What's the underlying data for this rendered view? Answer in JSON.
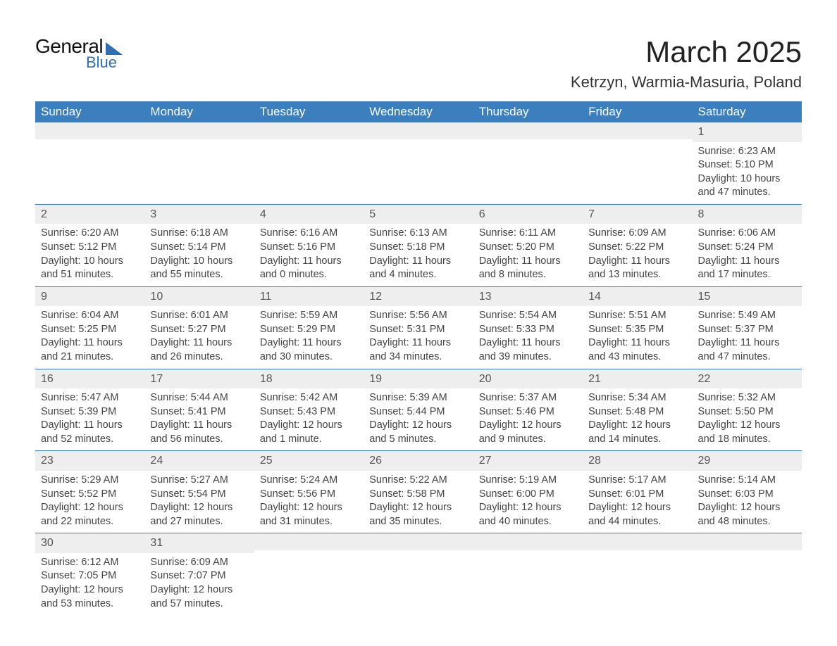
{
  "logo": {
    "main": "General",
    "sub": "Blue"
  },
  "title": "March 2025",
  "location": "Ketrzyn, Warmia-Masuria, Poland",
  "colors": {
    "header_bg": "#3b7fbf",
    "header_fg": "#ffffff",
    "row_divider": "#3b7fbf",
    "daynum_bg": "#eeeeee",
    "text": "#444444",
    "accent": "#2d6fb2"
  },
  "typography": {
    "title_fontsize": 42,
    "location_fontsize": 22,
    "header_fontsize": 17,
    "body_fontsize": 14.5,
    "font_family": "Arial"
  },
  "weekday_headers": [
    "Sunday",
    "Monday",
    "Tuesday",
    "Wednesday",
    "Thursday",
    "Friday",
    "Saturday"
  ],
  "weeks": [
    [
      null,
      null,
      null,
      null,
      null,
      null,
      {
        "n": "1",
        "sunrise": "6:23 AM",
        "sunset": "5:10 PM",
        "daylight": "10 hours and 47 minutes."
      }
    ],
    [
      {
        "n": "2",
        "sunrise": "6:20 AM",
        "sunset": "5:12 PM",
        "daylight": "10 hours and 51 minutes."
      },
      {
        "n": "3",
        "sunrise": "6:18 AM",
        "sunset": "5:14 PM",
        "daylight": "10 hours and 55 minutes."
      },
      {
        "n": "4",
        "sunrise": "6:16 AM",
        "sunset": "5:16 PM",
        "daylight": "11 hours and 0 minutes."
      },
      {
        "n": "5",
        "sunrise": "6:13 AM",
        "sunset": "5:18 PM",
        "daylight": "11 hours and 4 minutes."
      },
      {
        "n": "6",
        "sunrise": "6:11 AM",
        "sunset": "5:20 PM",
        "daylight": "11 hours and 8 minutes."
      },
      {
        "n": "7",
        "sunrise": "6:09 AM",
        "sunset": "5:22 PM",
        "daylight": "11 hours and 13 minutes."
      },
      {
        "n": "8",
        "sunrise": "6:06 AM",
        "sunset": "5:24 PM",
        "daylight": "11 hours and 17 minutes."
      }
    ],
    [
      {
        "n": "9",
        "sunrise": "6:04 AM",
        "sunset": "5:25 PM",
        "daylight": "11 hours and 21 minutes."
      },
      {
        "n": "10",
        "sunrise": "6:01 AM",
        "sunset": "5:27 PM",
        "daylight": "11 hours and 26 minutes."
      },
      {
        "n": "11",
        "sunrise": "5:59 AM",
        "sunset": "5:29 PM",
        "daylight": "11 hours and 30 minutes."
      },
      {
        "n": "12",
        "sunrise": "5:56 AM",
        "sunset": "5:31 PM",
        "daylight": "11 hours and 34 minutes."
      },
      {
        "n": "13",
        "sunrise": "5:54 AM",
        "sunset": "5:33 PM",
        "daylight": "11 hours and 39 minutes."
      },
      {
        "n": "14",
        "sunrise": "5:51 AM",
        "sunset": "5:35 PM",
        "daylight": "11 hours and 43 minutes."
      },
      {
        "n": "15",
        "sunrise": "5:49 AM",
        "sunset": "5:37 PM",
        "daylight": "11 hours and 47 minutes."
      }
    ],
    [
      {
        "n": "16",
        "sunrise": "5:47 AM",
        "sunset": "5:39 PM",
        "daylight": "11 hours and 52 minutes."
      },
      {
        "n": "17",
        "sunrise": "5:44 AM",
        "sunset": "5:41 PM",
        "daylight": "11 hours and 56 minutes."
      },
      {
        "n": "18",
        "sunrise": "5:42 AM",
        "sunset": "5:43 PM",
        "daylight": "12 hours and 1 minute."
      },
      {
        "n": "19",
        "sunrise": "5:39 AM",
        "sunset": "5:44 PM",
        "daylight": "12 hours and 5 minutes."
      },
      {
        "n": "20",
        "sunrise": "5:37 AM",
        "sunset": "5:46 PM",
        "daylight": "12 hours and 9 minutes."
      },
      {
        "n": "21",
        "sunrise": "5:34 AM",
        "sunset": "5:48 PM",
        "daylight": "12 hours and 14 minutes."
      },
      {
        "n": "22",
        "sunrise": "5:32 AM",
        "sunset": "5:50 PM",
        "daylight": "12 hours and 18 minutes."
      }
    ],
    [
      {
        "n": "23",
        "sunrise": "5:29 AM",
        "sunset": "5:52 PM",
        "daylight": "12 hours and 22 minutes."
      },
      {
        "n": "24",
        "sunrise": "5:27 AM",
        "sunset": "5:54 PM",
        "daylight": "12 hours and 27 minutes."
      },
      {
        "n": "25",
        "sunrise": "5:24 AM",
        "sunset": "5:56 PM",
        "daylight": "12 hours and 31 minutes."
      },
      {
        "n": "26",
        "sunrise": "5:22 AM",
        "sunset": "5:58 PM",
        "daylight": "12 hours and 35 minutes."
      },
      {
        "n": "27",
        "sunrise": "5:19 AM",
        "sunset": "6:00 PM",
        "daylight": "12 hours and 40 minutes."
      },
      {
        "n": "28",
        "sunrise": "5:17 AM",
        "sunset": "6:01 PM",
        "daylight": "12 hours and 44 minutes."
      },
      {
        "n": "29",
        "sunrise": "5:14 AM",
        "sunset": "6:03 PM",
        "daylight": "12 hours and 48 minutes."
      }
    ],
    [
      {
        "n": "30",
        "sunrise": "6:12 AM",
        "sunset": "7:05 PM",
        "daylight": "12 hours and 53 minutes."
      },
      {
        "n": "31",
        "sunrise": "6:09 AM",
        "sunset": "7:07 PM",
        "daylight": "12 hours and 57 minutes."
      },
      null,
      null,
      null,
      null,
      null
    ]
  ],
  "labels": {
    "sunrise": "Sunrise: ",
    "sunset": "Sunset: ",
    "daylight": "Daylight: "
  }
}
